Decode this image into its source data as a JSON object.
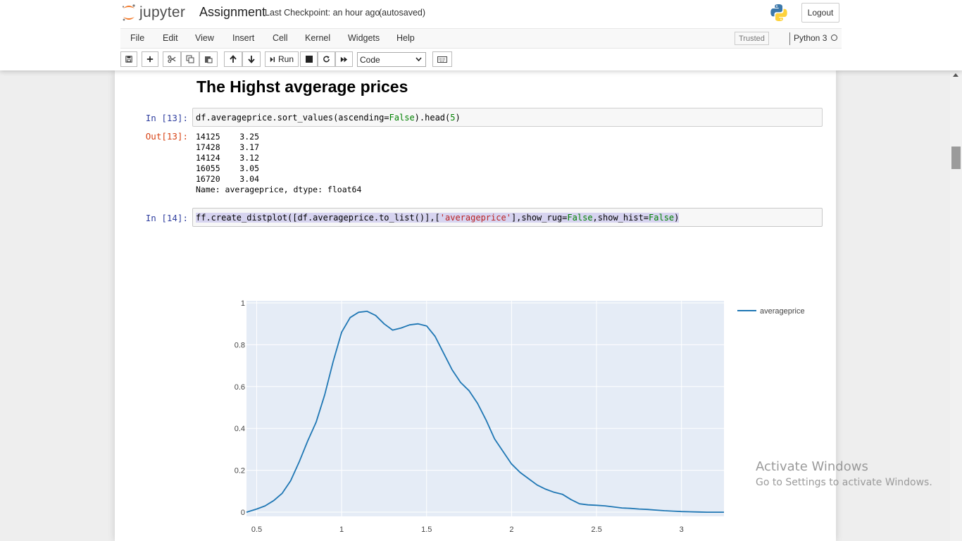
{
  "header": {
    "logo_text": "jupyter",
    "notebook_name": "Assignment",
    "checkpoint": "Last Checkpoint: an hour ago",
    "autosave": "(autosaved)",
    "logout_label": "Logout"
  },
  "menubar": {
    "items": [
      "File",
      "Edit",
      "View",
      "Insert",
      "Cell",
      "Kernel",
      "Widgets",
      "Help"
    ],
    "trusted": "Trusted",
    "kernel": "Python 3"
  },
  "toolbar": {
    "run_label": "Run",
    "cell_type": "Code",
    "icons": [
      "save-icon",
      "plus-icon",
      "cut-icon",
      "copy-icon",
      "paste-icon",
      "arrow-up-icon",
      "arrow-down-icon",
      "run-icon",
      "stop-icon",
      "restart-icon",
      "fast-forward-icon",
      "keyboard-icon"
    ]
  },
  "notebook": {
    "heading": "The Highst avgerage prices",
    "cell13": {
      "in_prompt": "In [13]:",
      "code_parts": [
        "df.averageprice.sort_values(ascending=",
        "False",
        ").head(",
        "5",
        ")"
      ],
      "out_prompt": "Out[13]:",
      "output_lines": [
        "14125    3.25",
        "17428    3.17",
        "14124    3.12",
        "16055    3.05",
        "16720    3.04",
        "Name: averageprice, dtype: float64"
      ]
    },
    "cell14": {
      "in_prompt": "In [14]:",
      "code_parts": [
        "ff.create_distplot([df.averageprice.to_list()],[",
        "'averageprice'",
        "],show_rug=",
        "False",
        ",show_hist=",
        "False",
        ")"
      ]
    }
  },
  "chart_data": {
    "type": "line",
    "series": [
      {
        "name": "averageprice",
        "color": "#1f77b4",
        "x": [
          0.44,
          0.5,
          0.55,
          0.6,
          0.65,
          0.7,
          0.75,
          0.8,
          0.85,
          0.9,
          0.95,
          1.0,
          1.05,
          1.1,
          1.15,
          1.2,
          1.25,
          1.3,
          1.35,
          1.4,
          1.45,
          1.5,
          1.55,
          1.6,
          1.65,
          1.7,
          1.75,
          1.8,
          1.85,
          1.9,
          1.95,
          2.0,
          2.05,
          2.1,
          2.15,
          2.2,
          2.25,
          2.3,
          2.35,
          2.4,
          2.45,
          2.5,
          2.55,
          2.6,
          2.65,
          2.7,
          2.75,
          2.8,
          2.85,
          2.9,
          2.95,
          3.0,
          3.05,
          3.1,
          3.15,
          3.25
        ],
        "values": [
          0.0,
          0.015,
          0.03,
          0.055,
          0.09,
          0.15,
          0.24,
          0.34,
          0.43,
          0.56,
          0.72,
          0.86,
          0.93,
          0.955,
          0.96,
          0.94,
          0.9,
          0.87,
          0.88,
          0.895,
          0.9,
          0.89,
          0.84,
          0.76,
          0.68,
          0.62,
          0.58,
          0.52,
          0.44,
          0.35,
          0.29,
          0.23,
          0.19,
          0.16,
          0.13,
          0.11,
          0.095,
          0.085,
          0.06,
          0.04,
          0.035,
          0.033,
          0.03,
          0.025,
          0.02,
          0.018,
          0.015,
          0.013,
          0.01,
          0.007,
          0.005,
          0.003,
          0.002,
          0.001,
          0.0,
          0.0
        ]
      }
    ],
    "xlim": [
      0.44,
      3.25
    ],
    "ylim": [
      -0.02,
      1.01
    ],
    "xticks": [
      0.5,
      1,
      1.5,
      2,
      2.5,
      3
    ],
    "yticks": [
      0,
      0.2,
      0.4,
      0.6,
      0.8,
      1
    ],
    "xtick_labels": [
      "0.5",
      "1",
      "1.5",
      "2",
      "2.5",
      "3"
    ],
    "ytick_labels": [
      "0",
      "0.2",
      "0.4",
      "0.6",
      "0.8",
      "1"
    ],
    "grid": true,
    "legend": "top-right",
    "plot_bg": "#e5ecf6"
  },
  "overlay": {
    "line1": "Activate Windows",
    "line2": "Go to Settings to activate Windows."
  }
}
